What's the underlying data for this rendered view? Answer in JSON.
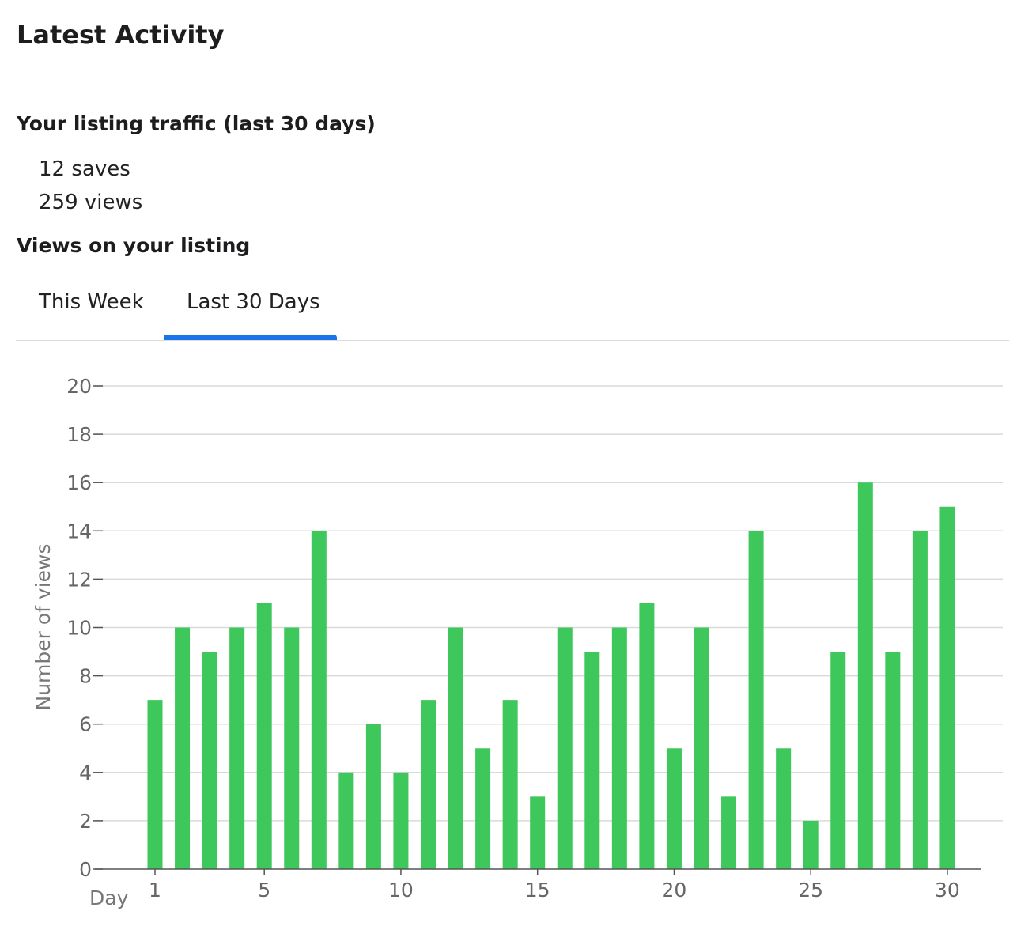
{
  "header": {
    "title": "Latest Activity"
  },
  "traffic": {
    "heading": "Your listing traffic (last 30 days)",
    "saves_text": "12 saves",
    "views_text": "259 views"
  },
  "views_section": {
    "heading": "Views on your listing",
    "tabs": [
      {
        "label": "This Week",
        "selected": false
      },
      {
        "label": "Last 30 Days",
        "selected": true
      }
    ]
  },
  "colors": {
    "bar": "#3ec75a",
    "tab_indicator": "#1a73e8",
    "gridline": "#d9d9d9",
    "axis": "#555555",
    "tick_text": "#666666"
  },
  "chart_data": {
    "type": "bar",
    "title": "",
    "xlabel": "Day",
    "ylabel": "Number of views",
    "ylim": [
      0,
      20
    ],
    "yticks": [
      0,
      2,
      4,
      6,
      8,
      10,
      12,
      14,
      16,
      18,
      20
    ],
    "xticks": [
      1,
      5,
      10,
      15,
      20,
      25,
      30
    ],
    "grid": true,
    "categories": [
      1,
      2,
      3,
      4,
      5,
      6,
      7,
      8,
      9,
      10,
      11,
      12,
      13,
      14,
      15,
      16,
      17,
      18,
      19,
      20,
      21,
      22,
      23,
      24,
      25,
      26,
      27,
      28,
      29,
      30
    ],
    "values": [
      7,
      10,
      9,
      10,
      11,
      10,
      14,
      4,
      6,
      4,
      7,
      10,
      5,
      7,
      3,
      10,
      9,
      10,
      11,
      5,
      10,
      3,
      14,
      5,
      2,
      9,
      16,
      9,
      14,
      15
    ]
  }
}
